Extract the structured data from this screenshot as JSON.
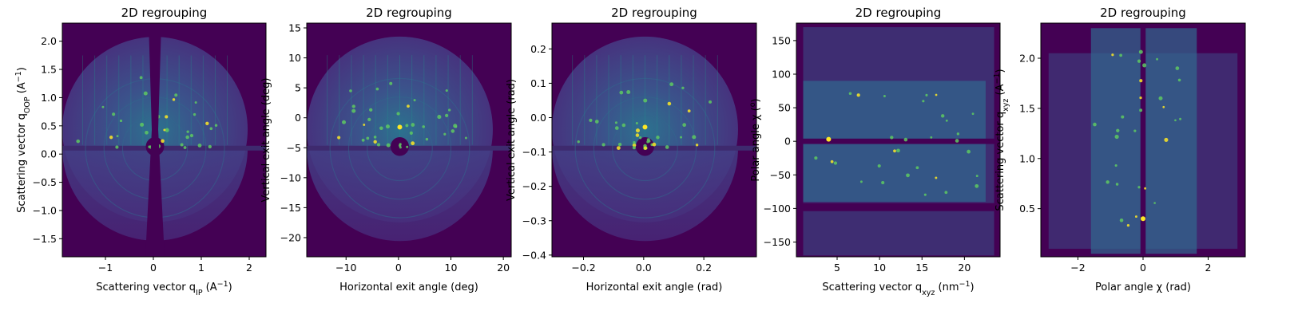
{
  "chart_data": [
    {
      "type": "heatmap",
      "title": "2D regrouping",
      "xlabel": {
        "prefix": "Scattering vector q",
        "sub": "IP",
        "suffix": " (A",
        "sup": "−1",
        "end": ")"
      },
      "ylabel": {
        "prefix": "Scattering vector q",
        "sub": "OOP",
        "suffix": " (A",
        "sup": "−1",
        "end": ")"
      },
      "xlim": [
        -1.9,
        2.35
      ],
      "ylim": [
        -1.82,
        2.32
      ],
      "xticks": [
        -1,
        0,
        1,
        2
      ],
      "xtick_labels": [
        "−1",
        "0",
        "1",
        "2"
      ],
      "yticks": [
        -1.5,
        -1.0,
        -0.5,
        0.0,
        0.5,
        1.0,
        1.5,
        2.0
      ],
      "ytick_labels": [
        "−1.5",
        "−1.0",
        "−0.5",
        "0.0",
        "0.5",
        "1.0",
        "1.5",
        "2.0"
      ],
      "colormap": "viridis"
    },
    {
      "type": "heatmap",
      "title": "2D regrouping",
      "xlabel": {
        "prefix": "Horizontal exit angle (deg)"
      },
      "ylabel": {
        "prefix": "Vertical exit angle (deg)"
      },
      "xlim": [
        -17.5,
        21.5
      ],
      "ylim": [
        -23.2,
        15.8
      ],
      "xticks": [
        -10,
        0,
        10,
        20
      ],
      "xtick_labels": [
        "−10",
        "0",
        "10",
        "20"
      ],
      "yticks": [
        -20,
        -15,
        -10,
        -5,
        0,
        5,
        10,
        15
      ],
      "ytick_labels": [
        "−20",
        "−15",
        "−10",
        "−5",
        "0",
        "5",
        "10",
        "15"
      ],
      "colormap": "viridis"
    },
    {
      "type": "heatmap",
      "title": "2D regrouping",
      "xlabel": {
        "prefix": "Horizontal exit angle (rad)"
      },
      "ylabel": {
        "prefix": "Vertical exit angle (rad)"
      },
      "xlim": [
        -0.305,
        0.375
      ],
      "ylim": [
        -0.405,
        0.275
      ],
      "xticks": [
        -0.2,
        0.0,
        0.2
      ],
      "xtick_labels": [
        "−0.2",
        "0.0",
        "0.2"
      ],
      "yticks": [
        -0.4,
        -0.3,
        -0.2,
        -0.1,
        0.0,
        0.1,
        0.2
      ],
      "ytick_labels": [
        "−0.4",
        "−0.3",
        "−0.2",
        "−0.1",
        "0.0",
        "0.1",
        "0.2"
      ],
      "colormap": "viridis"
    },
    {
      "type": "heatmap",
      "title": "2D regrouping",
      "xlabel": {
        "prefix": "Scattering vector q",
        "sub": "xyz",
        "suffix": " (nm",
        "sup": "−1",
        "end": ")"
      },
      "ylabel": {
        "prefix": "Polar angle χ (",
        "sup": "o",
        "end": ")"
      },
      "xlim": [
        0.2,
        24.2
      ],
      "ylim": [
        -172,
        176
      ],
      "xticks": [
        5,
        10,
        15,
        20
      ],
      "xtick_labels": [
        "5",
        "10",
        "15",
        "20"
      ],
      "yticks": [
        -150,
        -100,
        -50,
        0,
        50,
        100,
        150
      ],
      "ytick_labels": [
        "−150",
        "−100",
        "−50",
        "0",
        "50",
        "100",
        "150"
      ],
      "colormap": "viridis"
    },
    {
      "type": "heatmap",
      "title": "2D regrouping",
      "xlabel": {
        "prefix": "Polar angle χ (rad)"
      },
      "ylabel": {
        "prefix": "Scattering vector q",
        "sub": "xyz",
        "suffix": " (A",
        "sup": "−1",
        "end": ")"
      },
      "xlim": [
        -3.14,
        3.14
      ],
      "ylim": [
        0.02,
        2.35
      ],
      "xticks": [
        -2,
        0,
        2
      ],
      "xtick_labels": [
        "−2",
        "0",
        "2"
      ],
      "yticks": [
        0.5,
        1.0,
        1.5,
        2.0
      ],
      "ytick_labels": [
        "0.5",
        "1.0",
        "1.5",
        "2.0"
      ],
      "colormap": "viridis"
    }
  ],
  "colors": {
    "background": "#440154",
    "ring_dark": "#3b528b",
    "ring_mid": "#31688e",
    "stripe": "#21918c",
    "peak_bright": "#fde725",
    "peak_mid": "#5ec962"
  }
}
